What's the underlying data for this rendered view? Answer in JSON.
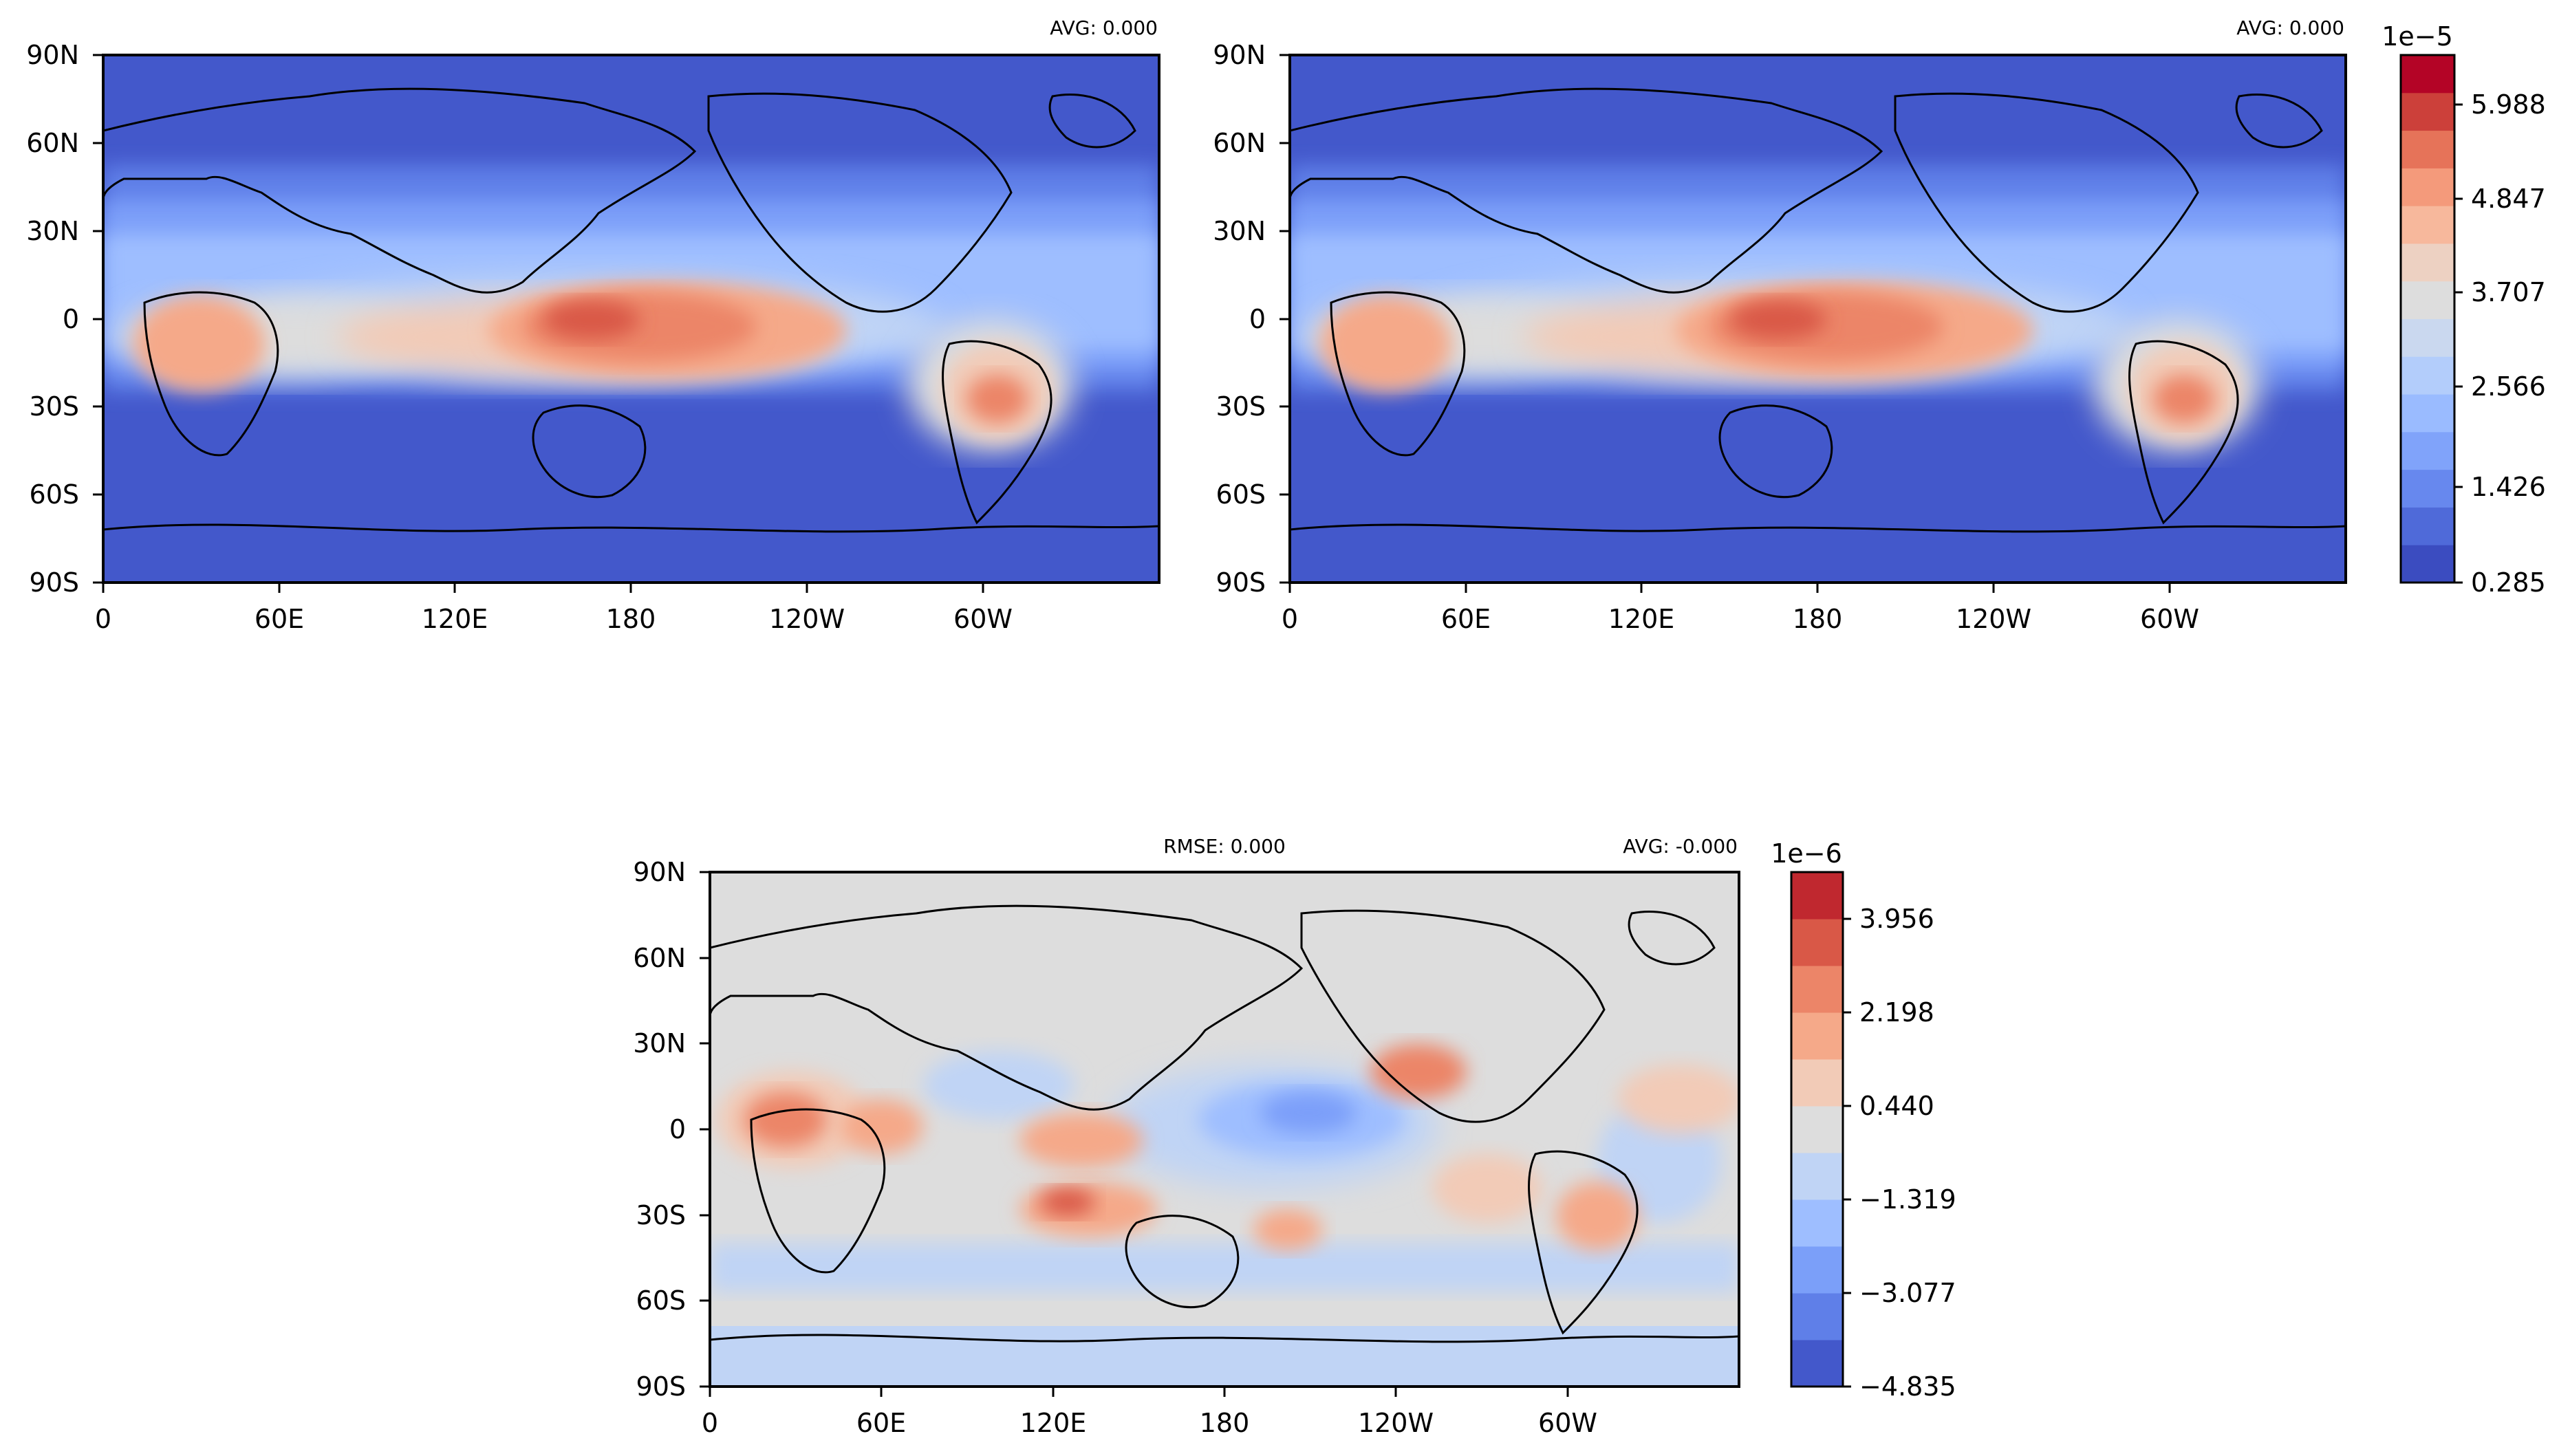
{
  "panels": [
    {
      "id": "top-left",
      "stats_right": "AVG: 0.000",
      "stats_left": "",
      "x_ticks": [
        "0",
        "60E",
        "120E",
        "180",
        "120W",
        "60W"
      ],
      "y_ticks": [
        "90N",
        "60N",
        "30N",
        "0",
        "30S",
        "60S",
        "90S"
      ]
    },
    {
      "id": "top-right",
      "stats_right": "AVG: 0.000",
      "stats_left": "",
      "x_ticks": [
        "0",
        "60E",
        "120E",
        "180",
        "120W",
        "60W"
      ],
      "y_ticks": [
        "90N",
        "60N",
        "30N",
        "0",
        "30S",
        "60S",
        "90S"
      ]
    },
    {
      "id": "bottom",
      "stats_right": "AVG: -0.000",
      "stats_left": "RMSE: 0.000",
      "x_ticks": [
        "0",
        "60E",
        "120E",
        "180",
        "120W",
        "60W"
      ],
      "y_ticks": [
        "90N",
        "60N",
        "30N",
        "0",
        "30S",
        "60S",
        "90S"
      ]
    }
  ],
  "colorbars": [
    {
      "id": "cbar-top",
      "exponent": "1e−5",
      "tick_labels": [
        "5.988",
        "4.847",
        "3.707",
        "2.566",
        "1.426",
        "0.285"
      ],
      "levels": 12,
      "colors": [
        "#3b4cc0",
        "#4f6ad9",
        "#6788ee",
        "#80a3fa",
        "#9abbff",
        "#b3cdfb",
        "#cad8ef",
        "#dddddd",
        "#edd1c2",
        "#f7b89c",
        "#f49a7b",
        "#e67359",
        "#cc403a",
        "#b40426"
      ]
    },
    {
      "id": "cbar-bottom",
      "exponent": "1e−6",
      "tick_labels": [
        "3.956",
        "2.198",
        "0.440",
        "−1.319",
        "−3.077",
        "−4.835"
      ],
      "levels": 11,
      "colors": [
        "#4358cb",
        "#5f7fe8",
        "#7b9ff9",
        "#9ebeff",
        "#c0d4f5",
        "#dddddd",
        "#f2cbb7",
        "#f5a989",
        "#ec8568",
        "#d95847",
        "#c0282f"
      ]
    }
  ]
}
